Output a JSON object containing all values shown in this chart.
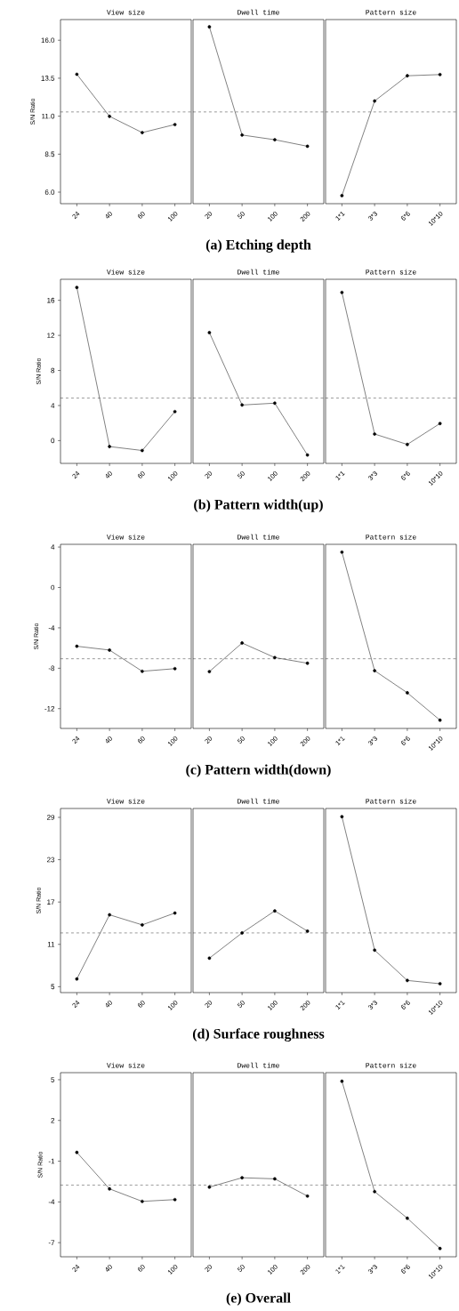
{
  "chart_data": [
    {
      "type": "line",
      "title": "View size",
      "ylabel": "S/N Ratio",
      "categories": [
        "24",
        "40",
        "60",
        "100"
      ],
      "values": [
        13.76,
        10.99,
        9.92,
        10.45
      ],
      "color": "#000000",
      "marker": "circle",
      "ylim": [
        5.24,
        17.36
      ],
      "yticks": [
        {
          "value": 6,
          "label": "6.0"
        },
        8.5,
        {
          "value": 11,
          "label": "11.0"
        },
        13.5,
        {
          "value": 16,
          "label": "16.0"
        }
      ],
      "ref_lines": [
        {
          "axis": "y",
          "value": 11.28,
          "line_style": "dashed",
          "color": "#000000"
        }
      ]
    },
    {
      "type": "line",
      "title": "Dwell time",
      "categories": [
        "20",
        "50",
        "100",
        "200"
      ],
      "values": [
        16.88,
        9.76,
        9.45,
        9.02
      ],
      "color": "#000000",
      "marker": "circle",
      "ylim": [
        5.24,
        17.36
      ],
      "tick_labels": "x",
      "ref_lines": [
        {
          "axis": "y",
          "value": 11.28,
          "line_style": "dashed",
          "color": "#000000"
        }
      ],
      "annotations": [
        "(a)  Etching  depth"
      ]
    },
    {
      "type": "line",
      "title": "Pattern size",
      "categories": [
        "1*1",
        "3*3",
        "6*6",
        "10*10"
      ],
      "values": [
        5.77,
        12.0,
        13.66,
        13.74
      ],
      "color": "#000000",
      "marker": "circle",
      "ylim": [
        5.24,
        17.36
      ],
      "tick_labels": "x",
      "ref_lines": [
        {
          "axis": "y",
          "value": 11.28,
          "line_style": "dashed",
          "color": "#000000"
        }
      ]
    },
    {
      "type": "line",
      "title": "View size",
      "ylabel": "S/N Ratio",
      "categories": [
        "24",
        "40",
        "60",
        "100"
      ],
      "values": [
        17.47,
        -0.68,
        -1.13,
        3.31
      ],
      "color": "#000000",
      "marker": "circle",
      "ylim": [
        -2.6,
        18.4
      ],
      "yticks": [
        0,
        4,
        8,
        12,
        16
      ],
      "ref_lines": [
        {
          "axis": "y",
          "value": 4.85,
          "line_style": "dashed",
          "color": "#000000"
        }
      ]
    },
    {
      "type": "line",
      "title": "Dwell time",
      "categories": [
        "20",
        "50",
        "100",
        "200"
      ],
      "values": [
        12.32,
        4.06,
        4.27,
        -1.64
      ],
      "color": "#000000",
      "marker": "circle",
      "ylim": [
        -2.6,
        18.4
      ],
      "tick_labels": "x",
      "ref_lines": [
        {
          "axis": "y",
          "value": 4.85,
          "line_style": "dashed",
          "color": "#000000"
        }
      ],
      "annotations": [
        "(b)  Pattern  width(up)"
      ]
    },
    {
      "type": "line",
      "title": "Pattern size",
      "categories": [
        "1*1",
        "3*3",
        "6*6",
        "10*10"
      ],
      "values": [
        16.9,
        0.75,
        -0.44,
        1.95
      ],
      "color": "#000000",
      "marker": "circle",
      "ylim": [
        -2.6,
        18.4
      ],
      "tick_labels": "x",
      "ref_lines": [
        {
          "axis": "y",
          "value": 4.85,
          "line_style": "dashed",
          "color": "#000000"
        }
      ]
    },
    {
      "type": "line",
      "title": "View size",
      "ylabel": "S/N Ratio",
      "categories": [
        "24",
        "40",
        "60",
        "100"
      ],
      "values": [
        -5.82,
        -6.2,
        -8.3,
        -8.04
      ],
      "color": "#000000",
      "marker": "circle",
      "ylim": [
        -13.96,
        4.27
      ],
      "yticks": [
        -12,
        -8,
        -4,
        0,
        4
      ],
      "ref_lines": [
        {
          "axis": "y",
          "value": -7.06,
          "line_style": "dashed",
          "color": "#000000"
        }
      ]
    },
    {
      "type": "line",
      "title": "Dwell time",
      "categories": [
        "20",
        "50",
        "100",
        "200"
      ],
      "values": [
        -8.33,
        -5.5,
        -6.94,
        -7.5
      ],
      "color": "#000000",
      "marker": "circle",
      "ylim": [
        -13.96,
        4.27
      ],
      "tick_labels": "x",
      "ref_lines": [
        {
          "axis": "y",
          "value": -7.06,
          "line_style": "dashed",
          "color": "#000000"
        }
      ],
      "annotations": [
        "(c)  Pattern  width(down)"
      ]
    },
    {
      "type": "line",
      "title": "Pattern size",
      "categories": [
        "1*1",
        "3*3",
        "6*6",
        "10*10"
      ],
      "values": [
        3.5,
        -8.24,
        -10.43,
        -13.14
      ],
      "color": "#000000",
      "marker": "circle",
      "ylim": [
        -13.96,
        4.27
      ],
      "tick_labels": "x",
      "ref_lines": [
        {
          "axis": "y",
          "value": -7.06,
          "line_style": "dashed",
          "color": "#000000"
        }
      ]
    },
    {
      "type": "line",
      "title": "View size",
      "ylabel": "S/N Ratio",
      "categories": [
        "24",
        "40",
        "60",
        "100"
      ],
      "values": [
        6.1,
        15.19,
        13.76,
        15.44
      ],
      "color": "#000000",
      "marker": "circle",
      "ylim": [
        4.16,
        30.26
      ],
      "yticks": [
        5,
        11,
        17,
        23,
        29
      ],
      "ref_lines": [
        {
          "axis": "y",
          "value": 12.62,
          "line_style": "dashed",
          "color": "#000000"
        }
      ]
    },
    {
      "type": "line",
      "title": "Dwell time",
      "categories": [
        "20",
        "50",
        "100",
        "200"
      ],
      "values": [
        9.04,
        12.62,
        15.74,
        12.87
      ],
      "color": "#000000",
      "marker": "circle",
      "ylim": [
        4.16,
        30.26
      ],
      "tick_labels": "x",
      "ref_lines": [
        {
          "axis": "y",
          "value": 12.62,
          "line_style": "dashed",
          "color": "#000000"
        }
      ],
      "annotations": [
        "(d)  Surface  roughness"
      ]
    },
    {
      "type": "line",
      "title": "Pattern size",
      "categories": [
        "1*1",
        "3*3",
        "6*6",
        "10*10"
      ],
      "values": [
        29.1,
        10.18,
        5.88,
        5.42
      ],
      "color": "#000000",
      "marker": "circle",
      "ylim": [
        4.16,
        30.26
      ],
      "tick_labels": "x",
      "ref_lines": [
        {
          "axis": "y",
          "value": 12.62,
          "line_style": "dashed",
          "color": "#000000"
        }
      ]
    },
    {
      "type": "line",
      "title": "View size",
      "ylabel": "S/N Ratio",
      "categories": [
        "24",
        "40",
        "60",
        "100"
      ],
      "values": [
        -0.35,
        -3.04,
        -3.96,
        -3.83
      ],
      "color": "#000000",
      "marker": "circle",
      "ylim": [
        -8.04,
        5.52
      ],
      "yticks": [
        -7,
        -4,
        -1,
        2,
        5
      ],
      "ref_lines": [
        {
          "axis": "y",
          "value": -2.76,
          "line_style": "dashed",
          "color": "#000000"
        }
      ]
    },
    {
      "type": "line",
      "title": "Dwell time",
      "categories": [
        "20",
        "50",
        "100",
        "200"
      ],
      "values": [
        -2.91,
        -2.22,
        -2.3,
        -3.57
      ],
      "color": "#000000",
      "marker": "circle",
      "ylim": [
        -8.04,
        5.52
      ],
      "tick_labels": "x",
      "ref_lines": [
        {
          "axis": "y",
          "value": -2.76,
          "line_style": "dashed",
          "color": "#000000"
        }
      ],
      "annotations": [
        "(e)  Overall"
      ]
    },
    {
      "type": "line",
      "title": "Pattern size",
      "categories": [
        "1*1",
        "3*3",
        "6*6",
        "10*10"
      ],
      "values": [
        4.89,
        -3.24,
        -5.2,
        -7.43
      ],
      "color": "#000000",
      "marker": "circle",
      "ylim": [
        -8.04,
        5.52
      ],
      "tick_labels": "x",
      "ref_lines": [
        {
          "axis": "y",
          "value": -2.76,
          "line_style": "dashed",
          "color": "#000000"
        }
      ]
    }
  ]
}
